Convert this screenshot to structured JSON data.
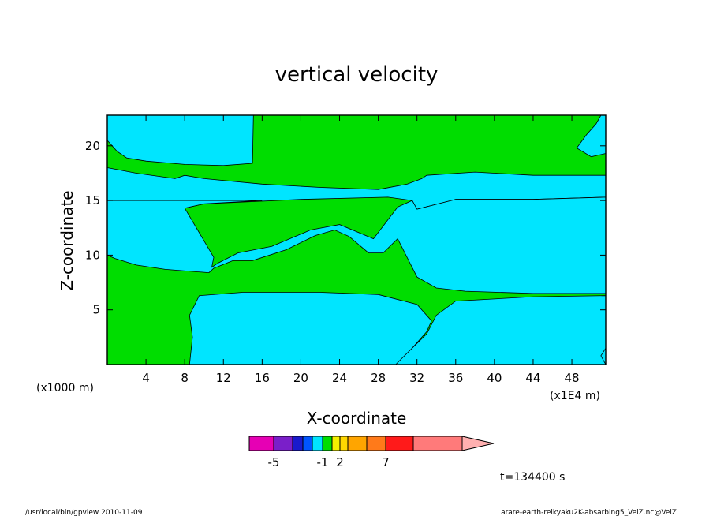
{
  "chart_data": {
    "type": "heatmap",
    "title": "vertical velocity",
    "xlabel": "X-coordinate",
    "ylabel": "Z-coordinate",
    "x_scale_note": "(x1000 m)",
    "x_scale_note2": "(x1E4 m)",
    "xlim": [
      0,
      51.5
    ],
    "ylim": [
      0,
      22.8
    ],
    "xticks": [
      "4",
      "8",
      "12",
      "16",
      "20",
      "24",
      "28",
      "32",
      "36",
      "40",
      "44",
      "48"
    ],
    "yticks": [
      "5",
      "10",
      "15",
      "20"
    ],
    "region_fill_colors": {
      "negative": "#00e5ff",
      "positive": "#00dd00"
    },
    "contour_regions": [
      {
        "sign": "negative",
        "level": "-1 to 0",
        "points": [
          [
            0,
            20.5
          ],
          [
            1,
            19.5
          ],
          [
            2,
            18.9
          ],
          [
            4,
            18.6
          ],
          [
            8,
            18.3
          ],
          [
            12,
            18.2
          ],
          [
            15,
            18.4
          ],
          [
            15.1,
            22.8
          ],
          [
            0,
            22.8
          ]
        ]
      },
      {
        "sign": "negative",
        "level": "-1 to 0",
        "points": [
          [
            0,
            18.0
          ],
          [
            3,
            17.5
          ],
          [
            7,
            17.0
          ],
          [
            8,
            17.3
          ],
          [
            10,
            17.0
          ],
          [
            16,
            16.5
          ],
          [
            22,
            16.2
          ],
          [
            28,
            16.0
          ],
          [
            31,
            16.5
          ],
          [
            32.5,
            17.0
          ],
          [
            33,
            17.3
          ],
          [
            38,
            17.6
          ],
          [
            44,
            17.3
          ],
          [
            51.5,
            17.3
          ],
          [
            51.5,
            15.3
          ],
          [
            44,
            15.1
          ],
          [
            36,
            15.1
          ],
          [
            32,
            14.2
          ],
          [
            31.5,
            15.0
          ],
          [
            29,
            15.3
          ],
          [
            20,
            15.1
          ],
          [
            10,
            14.7
          ],
          [
            8,
            14.3
          ],
          [
            7.5,
            14.2
          ],
          [
            5,
            14.0
          ],
          [
            4.5,
            13.0
          ],
          [
            3,
            12.2
          ],
          [
            1.5,
            11.8
          ],
          [
            0.5,
            10.5
          ],
          [
            0,
            10.0
          ]
        ]
      },
      {
        "sign": "negative",
        "level": "-1 to 0",
        "points": [
          [
            0,
            10.0
          ],
          [
            0.8,
            9.7
          ],
          [
            3,
            9.1
          ],
          [
            6,
            8.7
          ],
          [
            10.5,
            8.4
          ],
          [
            11,
            8.8
          ],
          [
            13,
            9.5
          ],
          [
            15,
            9.5
          ],
          [
            18.5,
            10.5
          ],
          [
            21.5,
            11.8
          ],
          [
            23.5,
            12.3
          ],
          [
            25,
            11.7
          ],
          [
            27,
            10.2
          ],
          [
            28.5,
            10.2
          ],
          [
            30,
            11.5
          ],
          [
            32,
            8.0
          ],
          [
            34,
            7.0
          ],
          [
            37,
            6.7
          ],
          [
            44,
            6.5
          ],
          [
            51.5,
            6.5
          ],
          [
            51.5,
            15.3
          ],
          [
            44,
            15.1
          ],
          [
            36,
            15.1
          ],
          [
            32,
            14.2
          ],
          [
            31.5,
            15.0
          ],
          [
            30,
            14.4
          ],
          [
            27.5,
            11.5
          ],
          [
            24,
            12.8
          ],
          [
            21,
            12.3
          ],
          [
            17,
            10.8
          ],
          [
            13.5,
            10.2
          ],
          [
            11.5,
            9.3
          ],
          [
            10.8,
            8.9
          ],
          [
            11,
            9.8
          ],
          [
            8,
            14.3
          ],
          [
            10,
            14.7
          ],
          [
            16,
            15.0
          ],
          [
            0,
            15.0
          ]
        ]
      },
      {
        "sign": "negative",
        "level": "-1 to 0",
        "points": [
          [
            8.5,
            0
          ],
          [
            8.8,
            2.5
          ],
          [
            8.5,
            4.5
          ],
          [
            9.5,
            6.3
          ],
          [
            14,
            6.6
          ],
          [
            22,
            6.6
          ],
          [
            28,
            6.4
          ],
          [
            32,
            5.5
          ],
          [
            33.5,
            4.0
          ],
          [
            33,
            3.0
          ],
          [
            30,
            0
          ]
        ]
      },
      {
        "sign": "negative",
        "level": "-1 to 0",
        "points": [
          [
            29.8,
            0
          ],
          [
            31.5,
            1.5
          ],
          [
            33,
            2.8
          ],
          [
            34,
            4.5
          ],
          [
            36,
            5.8
          ],
          [
            44,
            6.2
          ],
          [
            51.5,
            6.3
          ],
          [
            51.5,
            0
          ]
        ]
      },
      {
        "sign": "negative",
        "level": "-1 to 0",
        "points": [
          [
            48.5,
            19.8
          ],
          [
            49.5,
            21.0
          ],
          [
            50.5,
            22.0
          ],
          [
            51,
            22.8
          ],
          [
            51.5,
            22.8
          ],
          [
            51.5,
            19.3
          ],
          [
            50,
            19.0
          ]
        ]
      },
      {
        "sign": "negative",
        "level": "-1 to 0",
        "points": [
          [
            51,
            0.8
          ],
          [
            51.5,
            1.5
          ],
          [
            51.5,
            0
          ]
        ]
      }
    ],
    "colorbar": {
      "colors": [
        "#e600b4",
        "#7a1fc9",
        "#1a1acc",
        "#0055ff",
        "#00e5ff",
        "#00dd00",
        "#f5f000",
        "#ffd700",
        "#ffa500",
        "#ff7a1a",
        "#ff1a1a",
        "#ff7a7a",
        "#ffb0b0"
      ],
      "tick_labels": [
        {
          "text": "-5",
          "boundary": 1
        },
        {
          "text": "-1",
          "boundary": 5
        },
        {
          "text": "2",
          "boundary": 7
        },
        {
          "text": "7",
          "boundary": 10
        }
      ]
    },
    "time_label": "t=134400 s"
  },
  "footer": {
    "left": "/usr/local/bin/gpview  2010-11-09",
    "right": "arare-earth-reikyaku2K-absarbing5_VelZ.nc@VelZ"
  }
}
